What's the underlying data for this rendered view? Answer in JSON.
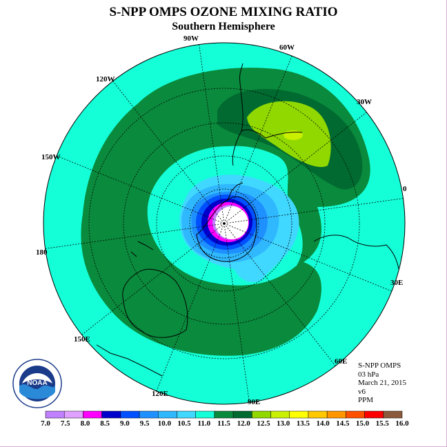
{
  "title": "S-NPP OMPS OZONE MIXING RATIO",
  "subtitle": "Southern Hemisphere",
  "longitude_labels": {
    "w90": "90W",
    "w60": "60W",
    "w30": "30W",
    "zero": "0",
    "w120": "120W",
    "w150": "150W",
    "lon180": "180",
    "e30": "30E",
    "e60": "60E",
    "e90": "90E",
    "e120": "120E",
    "e150": "150E"
  },
  "info": {
    "instrument": "S-NPP OMPS",
    "level": "03 hPa",
    "date": "March 21, 2015",
    "version": "v6",
    "units": "PPM"
  },
  "colorbar": {
    "ticks": [
      "7.0",
      "7.5",
      "8.0",
      "8.5",
      "9.0",
      "9.5",
      "10.0",
      "10.5",
      "11.0",
      "11.5",
      "12.0",
      "12.5",
      "13.0",
      "13.5",
      "14.0",
      "14.5",
      "15.0",
      "15.5",
      "16.0"
    ],
    "colors": [
      "#c080ff",
      "#e0a0ff",
      "#ff00ff",
      "#0000cc",
      "#0050ff",
      "#1e90ff",
      "#30b8ff",
      "#40d8ff",
      "#14ffd8",
      "#0a8a3c",
      "#006a30",
      "#90d800",
      "#c8f000",
      "#ffff00",
      "#ffc800",
      "#ff9600",
      "#ff5000",
      "#ff0000",
      "#8b5a3c"
    ]
  },
  "logo": {
    "text": "NOAA",
    "ring_text": "NATIONAL OCEANIC AND ATMOSPHERIC ADMINISTRATION"
  },
  "map_colors": {
    "ocean_background": "#14ffd8",
    "band_dark_green": "#0a8a3c",
    "band_darker_green": "#006a30",
    "max_lime": "#90d800",
    "max_yellowgreen": "#c8f000",
    "low_light_blue": "#40d8ff",
    "low_blue": "#30b8ff",
    "low_mid_blue": "#1e90ff",
    "low_deep_blue": "#0000cc",
    "low_magenta": "#ff00ff",
    "low_lavender": "#c080ff"
  }
}
